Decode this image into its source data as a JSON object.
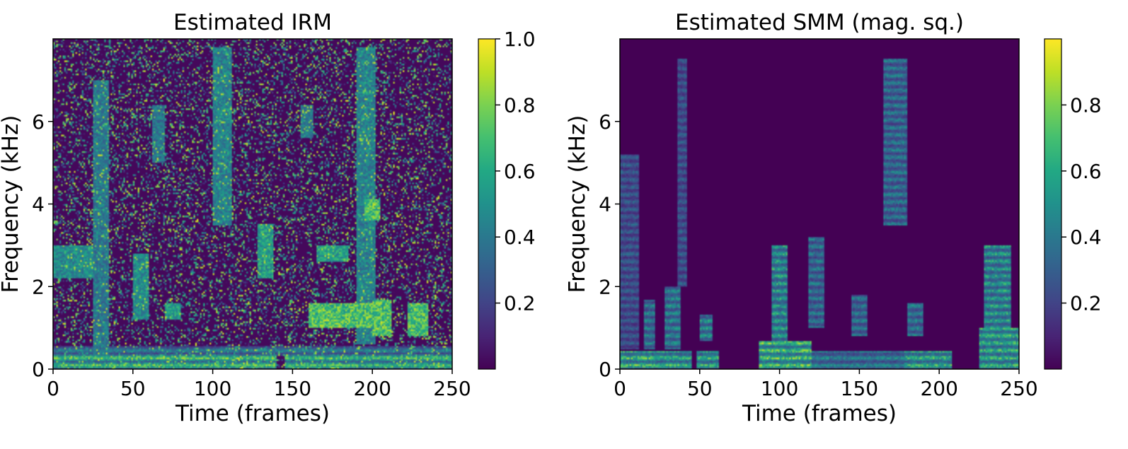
{
  "chart_data": [
    {
      "type": "heatmap",
      "title": "Estimated IRM",
      "xlabel": "Time (frames)",
      "ylabel": "Frequency (kHz)",
      "xlim": [
        0,
        250
      ],
      "ylim": [
        0,
        8
      ],
      "x_ticks": [
        "0",
        "50",
        "100",
        "150",
        "200",
        "250"
      ],
      "y_ticks": [
        "0",
        "2",
        "4",
        "6"
      ],
      "colorbar": {
        "colormap": "viridis",
        "range": [
          0,
          1.0
        ],
        "ticks": [
          "0.2",
          "0.4",
          "0.6",
          "0.8",
          "1.0"
        ]
      },
      "background_level": 0.02,
      "noise_density": 0.28,
      "noise_max": 0.95,
      "features": [
        {
          "t": [
            0,
            140
          ],
          "f": [
            0.0,
            0.35
          ],
          "v": 0.92,
          "harm": true
        },
        {
          "t": [
            145,
            250
          ],
          "f": [
            0.0,
            0.35
          ],
          "v": 0.88,
          "harm": true
        },
        {
          "t": [
            0,
            250
          ],
          "f": [
            0.3,
            0.55
          ],
          "v": 0.55,
          "harm": true
        },
        {
          "t": [
            25,
            35
          ],
          "f": [
            0.3,
            7.0
          ],
          "v": 0.5
        },
        {
          "t": [
            100,
            112
          ],
          "f": [
            3.5,
            7.8
          ],
          "v": 0.55
        },
        {
          "t": [
            190,
            202
          ],
          "f": [
            0.6,
            7.8
          ],
          "v": 0.55
        },
        {
          "t": [
            62,
            70
          ],
          "f": [
            5.0,
            6.4
          ],
          "v": 0.5
        },
        {
          "t": [
            155,
            163
          ],
          "f": [
            5.6,
            6.4
          ],
          "v": 0.5
        },
        {
          "t": [
            0,
            25
          ],
          "f": [
            2.2,
            3.0
          ],
          "v": 0.6
        },
        {
          "t": [
            50,
            60
          ],
          "f": [
            1.2,
            2.8
          ],
          "v": 0.6
        },
        {
          "t": [
            128,
            138
          ],
          "f": [
            2.2,
            3.5
          ],
          "v": 0.7
        },
        {
          "t": [
            160,
            200
          ],
          "f": [
            1.0,
            1.6
          ],
          "v": 0.9
        },
        {
          "t": [
            200,
            212
          ],
          "f": [
            0.8,
            1.7
          ],
          "v": 0.9
        },
        {
          "t": [
            222,
            235
          ],
          "f": [
            0.8,
            1.6
          ],
          "v": 0.85
        },
        {
          "t": [
            165,
            185
          ],
          "f": [
            2.6,
            3.0
          ],
          "v": 0.7
        },
        {
          "t": [
            195,
            205
          ],
          "f": [
            3.6,
            4.1
          ],
          "v": 0.9
        },
        {
          "t": [
            70,
            80
          ],
          "f": [
            1.2,
            1.6
          ],
          "v": 0.7
        }
      ]
    },
    {
      "type": "heatmap",
      "title": "Estimated SMM (mag. sq.)",
      "xlabel": "Time (frames)",
      "ylabel": "Frequency (kHz)",
      "xlim": [
        0,
        250
      ],
      "ylim": [
        0,
        8
      ],
      "x_ticks": [
        "0",
        "50",
        "100",
        "150",
        "200",
        "250"
      ],
      "y_ticks": [
        "0",
        "2",
        "4",
        "6"
      ],
      "colorbar": {
        "colormap": "viridis",
        "range": [
          0,
          1.0
        ],
        "ticks": [
          "0.2",
          "0.4",
          "0.6",
          "0.8"
        ]
      },
      "background_level": 0.0,
      "noise_density": 0.0,
      "noise_max": 0.0,
      "features": [
        {
          "t": [
            0,
            20
          ],
          "f": [
            0.0,
            0.45
          ],
          "v": 0.9,
          "harm": true
        },
        {
          "t": [
            20,
            45
          ],
          "f": [
            0.0,
            0.45
          ],
          "v": 0.85,
          "harm": true
        },
        {
          "t": [
            48,
            62
          ],
          "f": [
            0.0,
            0.45
          ],
          "v": 0.85,
          "harm": true
        },
        {
          "t": [
            87,
            120
          ],
          "f": [
            0.0,
            0.7
          ],
          "v": 0.95,
          "harm": true
        },
        {
          "t": [
            120,
            178
          ],
          "f": [
            0.0,
            0.45
          ],
          "v": 0.6,
          "harm": true
        },
        {
          "t": [
            178,
            208
          ],
          "f": [
            0.0,
            0.45
          ],
          "v": 0.85,
          "harm": true
        },
        {
          "t": [
            225,
            250
          ],
          "f": [
            0.0,
            1.0
          ],
          "v": 0.85,
          "harm": true
        },
        {
          "t": [
            0,
            12
          ],
          "f": [
            0.5,
            5.2
          ],
          "v": 0.4,
          "harm": true
        },
        {
          "t": [
            15,
            22
          ],
          "f": [
            0.5,
            1.7
          ],
          "v": 0.6,
          "harm": true
        },
        {
          "t": [
            28,
            38
          ],
          "f": [
            0.5,
            2.0
          ],
          "v": 0.65,
          "harm": true
        },
        {
          "t": [
            36,
            42
          ],
          "f": [
            2.0,
            7.5
          ],
          "v": 0.4,
          "harm": true
        },
        {
          "t": [
            50,
            58
          ],
          "f": [
            0.7,
            1.3
          ],
          "v": 0.7,
          "harm": true
        },
        {
          "t": [
            95,
            105
          ],
          "f": [
            0.5,
            3.0
          ],
          "v": 0.75,
          "harm": true
        },
        {
          "t": [
            118,
            128
          ],
          "f": [
            1.0,
            3.2
          ],
          "v": 0.55,
          "harm": true
        },
        {
          "t": [
            145,
            155
          ],
          "f": [
            0.8,
            1.8
          ],
          "v": 0.55,
          "harm": true
        },
        {
          "t": [
            165,
            180
          ],
          "f": [
            3.5,
            7.5
          ],
          "v": 0.55,
          "harm": true
        },
        {
          "t": [
            180,
            190
          ],
          "f": [
            0.8,
            1.6
          ],
          "v": 0.6,
          "harm": true
        },
        {
          "t": [
            228,
            245
          ],
          "f": [
            0.8,
            3.0
          ],
          "v": 0.75,
          "harm": true
        }
      ]
    }
  ]
}
